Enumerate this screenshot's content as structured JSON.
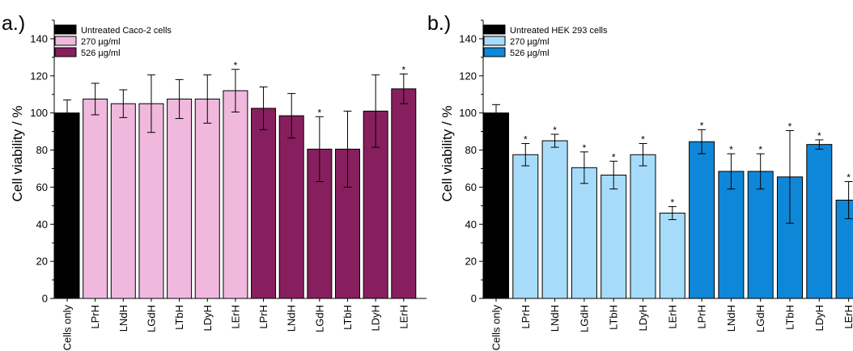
{
  "chart_data": [
    {
      "panel_label": "a.)",
      "type": "bar",
      "ylabel": "Cell viability / %",
      "ylim": [
        0,
        150
      ],
      "yticks": [
        0,
        20,
        40,
        60,
        80,
        100,
        120,
        140
      ],
      "categories": [
        "Cells only",
        "LPrH",
        "LNdH",
        "LGdH",
        "LTbH",
        "LDyH",
        "LErH",
        "LPrH",
        "LNdH",
        "LGdH",
        "LTbH",
        "LDyH",
        "LErH"
      ],
      "values": [
        100,
        107.5,
        105,
        105,
        107.5,
        107.5,
        112,
        102.5,
        98.5,
        80.5,
        80.5,
        101,
        113
      ],
      "errors": [
        7,
        8.5,
        7.5,
        15.5,
        10.5,
        13,
        11.5,
        11.5,
        12,
        17.5,
        20.5,
        19.5,
        8
      ],
      "significant": [
        false,
        false,
        false,
        false,
        false,
        false,
        true,
        false,
        false,
        true,
        false,
        false,
        true
      ],
      "group": [
        0,
        1,
        1,
        1,
        1,
        1,
        1,
        2,
        2,
        2,
        2,
        2,
        2
      ],
      "significance_mark": "*",
      "legend": [
        {
          "label": "Untreated Caco-2 cells",
          "color": "#000000"
        },
        {
          "label": "270 µg/ml",
          "color": "#f0b8dc"
        },
        {
          "label": "526 µg/ml",
          "color": "#871f5e"
        }
      ],
      "legend_position": "top-left"
    },
    {
      "panel_label": "b.)",
      "type": "bar",
      "ylabel": "Cell viability / %",
      "ylim": [
        0,
        150
      ],
      "yticks": [
        0,
        20,
        40,
        60,
        80,
        100,
        120,
        140
      ],
      "categories": [
        "Cells only",
        "LPrH",
        "LNdH",
        "LGdH",
        "LTbH",
        "LDyH",
        "LErH",
        "LPrH",
        "LNdH",
        "LGdH",
        "LTbH",
        "LDyH",
        "LErH"
      ],
      "values": [
        100,
        77.5,
        85,
        70.5,
        66.5,
        77.5,
        46,
        84.5,
        68.5,
        68.5,
        65.5,
        83,
        53
      ],
      "errors": [
        4.5,
        6,
        3.5,
        8.5,
        7.5,
        6,
        3.5,
        6.5,
        9.5,
        9.5,
        25,
        2.5,
        10
      ],
      "significant": [
        false,
        true,
        true,
        true,
        true,
        true,
        true,
        true,
        true,
        true,
        true,
        true,
        true
      ],
      "group": [
        0,
        1,
        1,
        1,
        1,
        1,
        1,
        2,
        2,
        2,
        2,
        2,
        2
      ],
      "significance_mark": "*",
      "legend": [
        {
          "label": "Untreated HEK 293 cells",
          "color": "#000000"
        },
        {
          "label": "270 µg/ml",
          "color": "#a6dcfa"
        },
        {
          "label": "526 µg/ml",
          "color": "#0f87d9"
        }
      ],
      "legend_position": "top-left"
    }
  ]
}
